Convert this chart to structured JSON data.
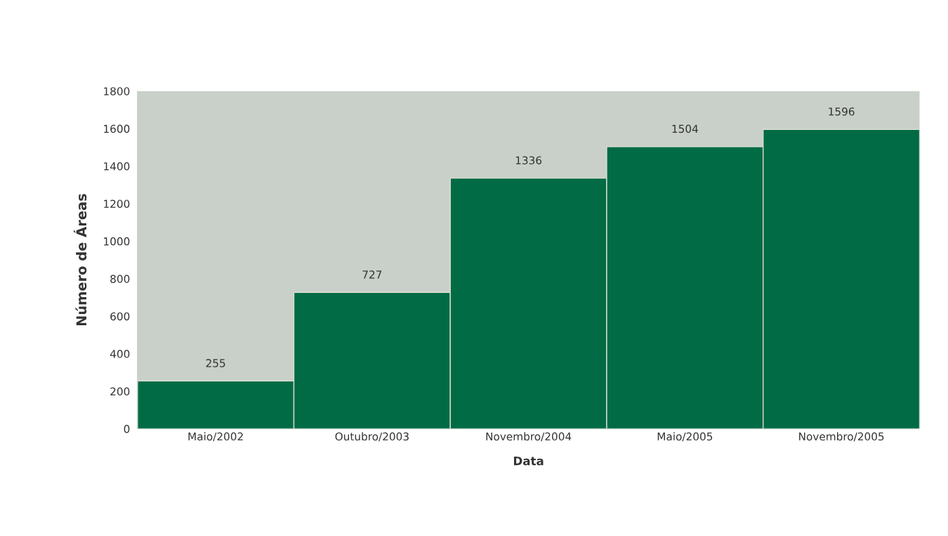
{
  "chart_data": {
    "type": "bar",
    "xlabel": "Data",
    "ylabel": "Número de Áreas",
    "categories": [
      "Maio/2002",
      "Outubro/2003",
      "Novembro/2004",
      "Maio/2005",
      "Novembro/2005"
    ],
    "values": [
      255,
      727,
      1336,
      1504,
      1596
    ],
    "color": "#006b45",
    "ylim": [
      0,
      1800
    ],
    "yticks": [
      0,
      200,
      400,
      600,
      800,
      1000,
      1200,
      1400,
      1600,
      1800
    ],
    "data_labels": true
  }
}
